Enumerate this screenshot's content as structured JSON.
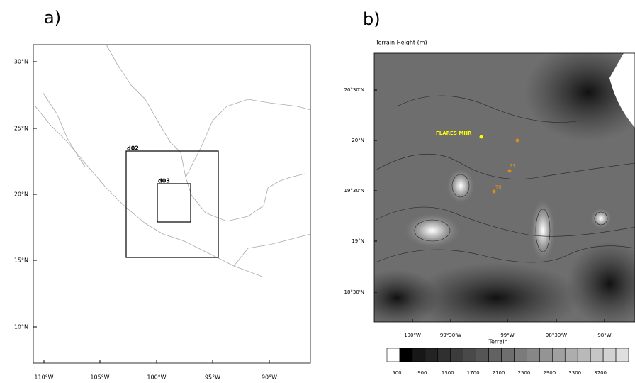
{
  "panel_a": {
    "label": "a)",
    "lat_labels": [
      "30°N",
      "25°N",
      "20°N",
      "15°N",
      "10°N"
    ],
    "lon_labels": [
      "110°W",
      "105°W",
      "100°W",
      "95°W",
      "90°W"
    ],
    "domains": [
      "d02",
      "d03"
    ]
  },
  "panel_b": {
    "label": "b)",
    "title": "Terrain Height   (m)",
    "lat_labels": [
      "20°30'N",
      "20°N",
      "19°30'N",
      "19°N",
      "18°30'N"
    ],
    "lon_labels": [
      "100°W",
      "99°30'W",
      "99°W",
      "98°30'W",
      "98°W"
    ],
    "sites": [
      "FLARES MHR",
      "T1",
      "T0"
    ],
    "colorbar": {
      "title": "Terrain",
      "labels": [
        "500",
        "900",
        "1300",
        "1700",
        "2100",
        "2500",
        "2900",
        "3300",
        "3700"
      ]
    }
  }
}
